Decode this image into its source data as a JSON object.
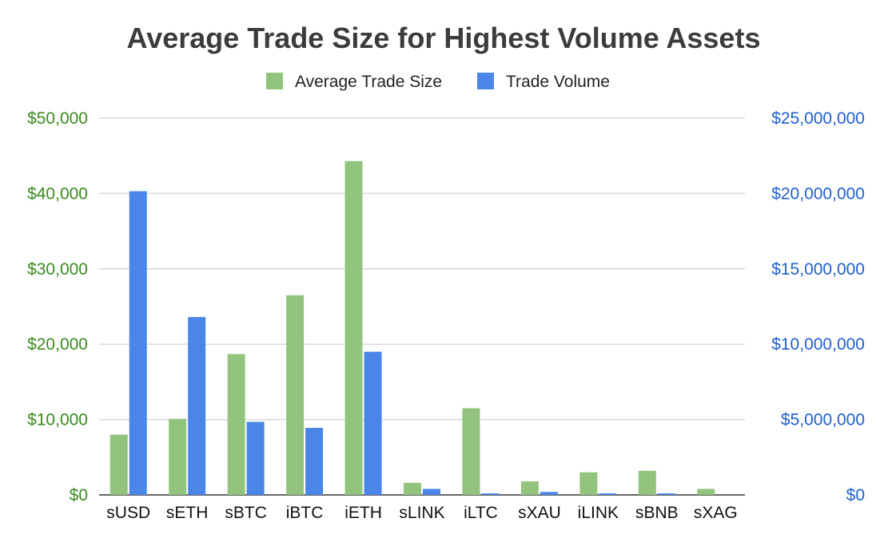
{
  "chart_data": {
    "type": "bar",
    "title": "Average Trade Size for Highest Volume Assets",
    "categories": [
      "sUSD",
      "sETH",
      "sBTC",
      "iBTC",
      "iETH",
      "sLINK",
      "iLTC",
      "sXAU",
      "iLINK",
      "sBNB",
      "sXAG"
    ],
    "series": [
      {
        "name": "Average Trade Size",
        "axis": "left",
        "color": "#93c47d",
        "values": [
          8000,
          10100,
          18700,
          26500,
          44300,
          1600,
          11500,
          1800,
          3000,
          3200,
          800
        ]
      },
      {
        "name": "Trade Volume",
        "axis": "right",
        "color": "#4a86e8",
        "values": [
          20150000,
          11800000,
          4850000,
          4450000,
          9500000,
          400000,
          100000,
          200000,
          100000,
          100000,
          0
        ]
      }
    ],
    "y_left": {
      "range": [
        0,
        50000
      ],
      "ticks": [
        0,
        10000,
        20000,
        30000,
        40000,
        50000
      ],
      "tick_labels": [
        "$0",
        "$10,000",
        "$20,000",
        "$30,000",
        "$40,000",
        "$50,000"
      ],
      "color": "#3a8a1e"
    },
    "y_right": {
      "range": [
        0,
        25000000
      ],
      "ticks": [
        0,
        5000000,
        10000000,
        15000000,
        20000000,
        25000000
      ],
      "tick_labels": [
        "$0",
        "$5,000,000",
        "$10,000,000",
        "$15,000,000",
        "$20,000,000",
        "$25,000,000"
      ],
      "color": "#1f5fcf"
    },
    "grid": true,
    "legend": "top-center"
  }
}
